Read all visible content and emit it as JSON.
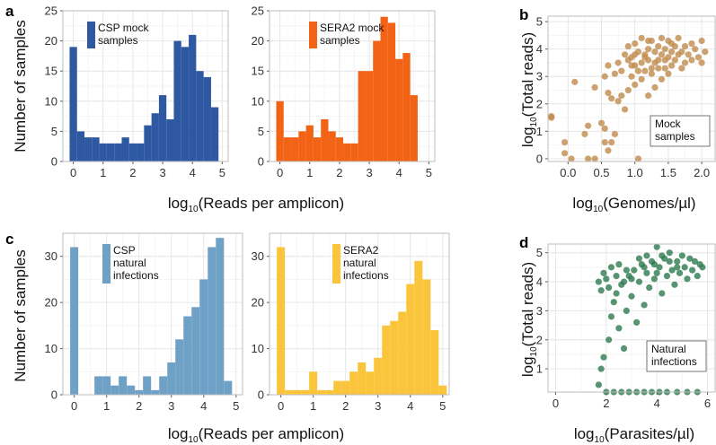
{
  "labels": {
    "panel_a": "a",
    "panel_b": "b",
    "panel_c": "c",
    "panel_d": "d",
    "ylabel_hist": "Number of samples",
    "xlabel_hist": "Reads per amplicon",
    "log_prefix": "log",
    "log_sub": "10",
    "ylabel_scatter": "Total reads",
    "xlabel_b": "Genomes/µl",
    "xlabel_d": "Parasites/µl"
  },
  "chart_data": [
    {
      "id": "a1",
      "type": "bar",
      "legend": [
        "CSP mock",
        "samples"
      ],
      "color": "#2e58a1",
      "xlim": [
        -0.35,
        5.2
      ],
      "ylim": [
        0,
        25
      ],
      "xticks": [
        0,
        1,
        2,
        3,
        4,
        5
      ],
      "yticks": [
        0,
        5,
        10,
        15,
        20,
        25
      ],
      "bin_start": -0.125,
      "bin_width": 0.25,
      "values": [
        19,
        5,
        4,
        4,
        3,
        3,
        3,
        4,
        3,
        3,
        6,
        8,
        11,
        7,
        20,
        19,
        21,
        15,
        14,
        9,
        0
      ]
    },
    {
      "id": "a2",
      "type": "bar",
      "legend": [
        "SERA2 mock",
        "samples"
      ],
      "color": "#f36316",
      "xlim": [
        -0.35,
        5.2
      ],
      "ylim": [
        0,
        25
      ],
      "xticks": [
        0,
        1,
        2,
        3,
        4,
        5
      ],
      "yticks": [
        0,
        5,
        10,
        15,
        20,
        25
      ],
      "bin_start": -0.125,
      "bin_width": 0.25,
      "values": [
        10,
        4,
        4,
        5,
        6,
        4,
        7,
        5,
        4,
        3,
        3,
        15,
        15,
        20,
        24,
        23,
        17,
        18,
        11,
        0,
        0
      ]
    },
    {
      "id": "b",
      "type": "scatter",
      "color": "#c08b4e",
      "legend": [
        "Mock",
        "samples"
      ],
      "xlim": [
        -0.3,
        2.2
      ],
      "ylim": [
        -0.1,
        5.2
      ],
      "xticks": [
        0.0,
        0.5,
        1.0,
        1.5,
        2.0
      ],
      "xtick_labels": [
        "0.0",
        "0.5",
        "1.0",
        "1.5",
        "2.0"
      ],
      "yticks": [
        0,
        1,
        2,
        3,
        4,
        5
      ],
      "points": [
        [
          -0.25,
          1.5
        ],
        [
          -0.25,
          1.55
        ],
        [
          -0.05,
          0.6
        ],
        [
          -0.05,
          0.2
        ],
        [
          0.05,
          0
        ],
        [
          0.3,
          0
        ],
        [
          0.4,
          0
        ],
        [
          0.1,
          2.8
        ],
        [
          0.25,
          0.9
        ],
        [
          0.3,
          1.2
        ],
        [
          0.4,
          2.6
        ],
        [
          0.5,
          1.3
        ],
        [
          0.55,
          1.1
        ],
        [
          0.55,
          0.6
        ],
        [
          0.55,
          3.0
        ],
        [
          0.6,
          0.3
        ],
        [
          0.6,
          2.4
        ],
        [
          0.6,
          3.4
        ],
        [
          0.65,
          2.2
        ],
        [
          0.65,
          0.6
        ],
        [
          0.7,
          3.1
        ],
        [
          0.7,
          0.9
        ],
        [
          0.75,
          2.1
        ],
        [
          0.75,
          3.5
        ],
        [
          0.8,
          2.3
        ],
        [
          0.8,
          3.2
        ],
        [
          0.85,
          3.8
        ],
        [
          0.85,
          1.8
        ],
        [
          0.9,
          4.1
        ],
        [
          0.9,
          2.5
        ],
        [
          0.95,
          3.7
        ],
        [
          0.95,
          3.0
        ],
        [
          1.0,
          4.2
        ],
        [
          1.0,
          2.7
        ],
        [
          1.0,
          3.4
        ],
        [
          1.05,
          3.9
        ],
        [
          1.05,
          0
        ],
        [
          1.1,
          3.5
        ],
        [
          1.1,
          2.9
        ],
        [
          1.1,
          4.4
        ],
        [
          1.15,
          3.8
        ],
        [
          1.15,
          3.2
        ],
        [
          1.2,
          4.0
        ],
        [
          1.2,
          2.3
        ],
        [
          1.2,
          3.6
        ],
        [
          1.25,
          4.3
        ],
        [
          1.25,
          3.1
        ],
        [
          1.3,
          3.9
        ],
        [
          1.3,
          2.6
        ],
        [
          1.3,
          3.5
        ],
        [
          1.35,
          4.1
        ],
        [
          1.35,
          3.3
        ],
        [
          1.4,
          3.8
        ],
        [
          1.4,
          4.4
        ],
        [
          1.4,
          2.9
        ],
        [
          1.45,
          3.6
        ],
        [
          1.45,
          4.0
        ],
        [
          1.5,
          3.7
        ],
        [
          1.5,
          3.1
        ],
        [
          1.5,
          4.3
        ],
        [
          1.55,
          3.9
        ],
        [
          1.55,
          3.4
        ],
        [
          1.6,
          4.1
        ],
        [
          1.6,
          3.6
        ],
        [
          1.65,
          3.8
        ],
        [
          1.65,
          4.4
        ],
        [
          1.7,
          3.3
        ],
        [
          1.7,
          3.9
        ],
        [
          1.75,
          4.1
        ],
        [
          1.75,
          3.5
        ],
        [
          1.8,
          3.8
        ],
        [
          1.85,
          4.2
        ],
        [
          1.85,
          3.6
        ],
        [
          1.9,
          4.0
        ],
        [
          1.95,
          3.7
        ],
        [
          2.0,
          4.3
        ],
        [
          2.0,
          3.5
        ],
        [
          2.05,
          3.9
        ],
        [
          1.15,
          3.7
        ],
        [
          0.95,
          3.4
        ],
        [
          1.25,
          3.3
        ],
        [
          1.35,
          3.6
        ],
        [
          1.05,
          3.2
        ],
        [
          0.9,
          3.6
        ],
        [
          1.45,
          3.3
        ],
        [
          1.55,
          4.2
        ],
        [
          1.2,
          4.3
        ],
        [
          1.0,
          3.8
        ]
      ]
    },
    {
      "id": "c1",
      "type": "bar",
      "legend": [
        "CSP",
        "natural",
        "infections"
      ],
      "color": "#6fa1c6",
      "xlim": [
        -0.35,
        5.2
      ],
      "ylim": [
        0,
        35
      ],
      "xticks": [
        0,
        1,
        2,
        3,
        4,
        5
      ],
      "yticks": [
        0,
        10,
        20,
        30
      ],
      "bin_start": -0.125,
      "bin_width": 0.25,
      "values": [
        32,
        0,
        0,
        4,
        4,
        2,
        4,
        2,
        1,
        4,
        1,
        4,
        7,
        12,
        17,
        19,
        25,
        32,
        34,
        3,
        0
      ]
    },
    {
      "id": "c2",
      "type": "bar",
      "legend": [
        "SERA2",
        "natural",
        "infections"
      ],
      "color": "#fbc53b",
      "xlim": [
        -0.35,
        5.2
      ],
      "ylim": [
        0,
        35
      ],
      "xticks": [
        0,
        1,
        2,
        3,
        4,
        5
      ],
      "yticks": [
        0,
        10,
        20,
        30
      ],
      "bin_start": -0.125,
      "bin_width": 0.25,
      "values": [
        32,
        1,
        1,
        1,
        5,
        1,
        1,
        3,
        3,
        5,
        7,
        5,
        8,
        15,
        16,
        18,
        24,
        29,
        25,
        14,
        2
      ]
    },
    {
      "id": "d",
      "type": "scatter",
      "color": "#2d7a4f",
      "legend": [
        "Natural",
        "infections"
      ],
      "xlim": [
        -0.3,
        6.3
      ],
      "ylim": [
        0.2,
        5.3
      ],
      "xticks": [
        0,
        2,
        4,
        6
      ],
      "xtick_labels": [
        "0",
        "2",
        "4",
        "6"
      ],
      "yticks": [
        1,
        2,
        3,
        4,
        5
      ],
      "points": [
        [
          1.7,
          0.45
        ],
        [
          1.8,
          1.0
        ],
        [
          1.9,
          1.4
        ],
        [
          2.0,
          0.2
        ],
        [
          2.3,
          0.2
        ],
        [
          2.6,
          0.2
        ],
        [
          2.9,
          0.2
        ],
        [
          3.2,
          0.2
        ],
        [
          3.5,
          0.2
        ],
        [
          3.8,
          0.2
        ],
        [
          4.1,
          0.2
        ],
        [
          4.4,
          0.2
        ],
        [
          4.8,
          0.2
        ],
        [
          5.2,
          0.2
        ],
        [
          5.6,
          0.2
        ],
        [
          2.1,
          2.0
        ],
        [
          2.2,
          2.8
        ],
        [
          2.3,
          3.3
        ],
        [
          2.4,
          3.6
        ],
        [
          2.5,
          2.4
        ],
        [
          2.6,
          3.9
        ],
        [
          2.7,
          1.7
        ],
        [
          2.8,
          3.0
        ],
        [
          2.9,
          4.2
        ],
        [
          3.0,
          3.5
        ],
        [
          3.1,
          4.4
        ],
        [
          3.2,
          2.6
        ],
        [
          3.3,
          4.0
        ],
        [
          3.4,
          4.6
        ],
        [
          3.5,
          3.2
        ],
        [
          3.6,
          4.3
        ],
        [
          3.7,
          3.8
        ],
        [
          3.8,
          4.7
        ],
        [
          3.9,
          4.1
        ],
        [
          4.0,
          5.2
        ],
        [
          4.1,
          4.5
        ],
        [
          4.2,
          3.6
        ],
        [
          4.3,
          4.8
        ],
        [
          4.4,
          4.2
        ],
        [
          4.5,
          5.0
        ],
        [
          4.6,
          4.4
        ],
        [
          4.7,
          3.9
        ],
        [
          4.8,
          4.7
        ],
        [
          4.9,
          4.3
        ],
        [
          5.0,
          4.9
        ],
        [
          5.1,
          4.5
        ],
        [
          5.2,
          4.1
        ],
        [
          5.3,
          4.8
        ],
        [
          5.4,
          4.4
        ],
        [
          5.5,
          4.7
        ],
        [
          5.6,
          4.2
        ],
        [
          5.7,
          4.6
        ],
        [
          5.8,
          4.5
        ],
        [
          2.0,
          4.1
        ],
        [
          1.8,
          3.7
        ],
        [
          1.9,
          4.3
        ],
        [
          2.2,
          4.5
        ],
        [
          2.5,
          4.6
        ],
        [
          2.8,
          4.4
        ],
        [
          3.3,
          4.8
        ],
        [
          3.6,
          4.9
        ],
        [
          3.9,
          4.6
        ],
        [
          4.2,
          4.9
        ],
        [
          4.5,
          4.7
        ],
        [
          1.7,
          4.0
        ],
        [
          2.1,
          3.8
        ],
        [
          2.4,
          4.2
        ],
        [
          2.7,
          4.0
        ],
        [
          3.0,
          4.1
        ],
        [
          3.5,
          4.5
        ],
        [
          4.0,
          4.3
        ],
        [
          4.8,
          4.5
        ]
      ]
    }
  ]
}
